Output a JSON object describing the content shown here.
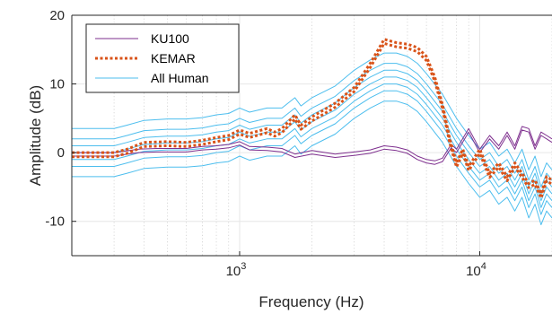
{
  "chart_data": {
    "type": "line",
    "title": "",
    "xlabel": "Frequency (Hz)",
    "ylabel": "Amplitude (dB)",
    "xscale": "log",
    "xlim": [
      200,
      20000
    ],
    "ylim": [
      -15,
      20
    ],
    "grid": "on",
    "legend": {
      "placement": "top-left"
    },
    "x_ticks": [
      {
        "value": 1000,
        "base": "10",
        "exp": "3"
      },
      {
        "value": 10000,
        "base": "10",
        "exp": "4"
      }
    ],
    "y_ticks": [
      {
        "value": 20,
        "label": "20"
      },
      {
        "value": 10,
        "label": "10"
      },
      {
        "value": 0,
        "label": "0"
      },
      {
        "value": -10,
        "label": "-10"
      }
    ],
    "series": [
      {
        "name": "KU100",
        "color": "#7e2f8e",
        "style": "solid",
        "copies": [
          0,
          -0.5
        ],
        "points": [
          [
            200,
            0
          ],
          [
            300,
            0
          ],
          [
            330,
            0.2
          ],
          [
            380,
            0.5
          ],
          [
            450,
            0.6
          ],
          [
            600,
            0.6
          ],
          [
            700,
            0.9
          ],
          [
            800,
            1.0
          ],
          [
            900,
            1.2
          ],
          [
            1000,
            1.6
          ],
          [
            1100,
            0.9
          ],
          [
            1300,
            0.8
          ],
          [
            1500,
            0.6
          ],
          [
            1700,
            -0.2
          ],
          [
            2000,
            0.3
          ],
          [
            2500,
            -0.2
          ],
          [
            3000,
            0.1
          ],
          [
            3500,
            0.4
          ],
          [
            4000,
            1.0
          ],
          [
            4500,
            0.8
          ],
          [
            5000,
            0.4
          ],
          [
            5500,
            -0.5
          ],
          [
            6000,
            -1.0
          ],
          [
            6500,
            -1.2
          ],
          [
            7000,
            -0.8
          ],
          [
            7600,
            1.2
          ],
          [
            8000,
            0.5
          ],
          [
            9000,
            3.5
          ],
          [
            10000,
            0.5
          ],
          [
            11000,
            2.5
          ],
          [
            12000,
            1.0
          ],
          [
            13000,
            3.0
          ],
          [
            14000,
            1.0
          ],
          [
            15000,
            3.8
          ],
          [
            16000,
            3.5
          ],
          [
            17000,
            1.0
          ],
          [
            18000,
            3.0
          ],
          [
            19000,
            2.5
          ],
          [
            20000,
            2.0
          ]
        ]
      },
      {
        "name": "KEMAR",
        "color": "#d95319",
        "style": "dotted",
        "copies": [
          0,
          -0.6
        ],
        "points": [
          [
            200,
            0
          ],
          [
            300,
            0
          ],
          [
            340,
            0.5
          ],
          [
            400,
            1.5
          ],
          [
            500,
            1.6
          ],
          [
            600,
            1.5
          ],
          [
            700,
            1.8
          ],
          [
            800,
            2.2
          ],
          [
            900,
            2.5
          ],
          [
            1000,
            3.3
          ],
          [
            1100,
            2.8
          ],
          [
            1300,
            3.5
          ],
          [
            1400,
            3.0
          ],
          [
            1500,
            3.5
          ],
          [
            1700,
            5.5
          ],
          [
            1800,
            4.0
          ],
          [
            2000,
            5.2
          ],
          [
            2500,
            7.2
          ],
          [
            3000,
            9.5
          ],
          [
            3500,
            13.0
          ],
          [
            4000,
            16.5
          ],
          [
            4500,
            16.0
          ],
          [
            5000,
            15.8
          ],
          [
            5500,
            15.3
          ],
          [
            6000,
            14.0
          ],
          [
            6500,
            11.0
          ],
          [
            7000,
            7.0
          ],
          [
            7500,
            2.0
          ],
          [
            8000,
            -1.5
          ],
          [
            8500,
            0.5
          ],
          [
            9000,
            -2.0
          ],
          [
            10000,
            0.5
          ],
          [
            11000,
            -3.0
          ],
          [
            12000,
            -1.5
          ],
          [
            13000,
            -3.5
          ],
          [
            14000,
            -1.5
          ],
          [
            15000,
            -3.0
          ],
          [
            16000,
            -4.5
          ],
          [
            17000,
            -4.0
          ],
          [
            18000,
            -6.0
          ],
          [
            19000,
            -3.5
          ],
          [
            20000,
            -4.0
          ]
        ]
      },
      {
        "name": "All Human",
        "color": "#4dbeee",
        "style": "solid",
        "copies": [
          -3.5,
          -2,
          -1,
          0,
          1,
          2,
          3.5
        ],
        "points": [
          [
            200,
            0
          ],
          [
            300,
            0
          ],
          [
            340,
            0.5
          ],
          [
            400,
            1.2
          ],
          [
            500,
            1.4
          ],
          [
            600,
            1.4
          ],
          [
            700,
            1.6
          ],
          [
            800,
            2.0
          ],
          [
            900,
            2.2
          ],
          [
            1000,
            3.0
          ],
          [
            1100,
            2.4
          ],
          [
            1300,
            3.0
          ],
          [
            1500,
            3.0
          ],
          [
            1700,
            4.5
          ],
          [
            1800,
            3.3
          ],
          [
            2000,
            4.5
          ],
          [
            2500,
            6.2
          ],
          [
            3000,
            8.5
          ],
          [
            3500,
            10.0
          ],
          [
            4000,
            11.0
          ],
          [
            4500,
            11.0
          ],
          [
            5000,
            10.5
          ],
          [
            5500,
            9.5
          ],
          [
            6000,
            8.0
          ],
          [
            7000,
            5.0
          ],
          [
            8000,
            1.5
          ],
          [
            9000,
            -1.0
          ],
          [
            10000,
            -3.0
          ],
          [
            11000,
            -2.0
          ],
          [
            12000,
            -4.0
          ],
          [
            13000,
            -3.0
          ],
          [
            14000,
            -5.0
          ],
          [
            15000,
            -3.0
          ],
          [
            16000,
            -6.0
          ],
          [
            17000,
            -4.0
          ],
          [
            18000,
            -7.0
          ],
          [
            19000,
            -5.0
          ],
          [
            20000,
            -6.0
          ]
        ]
      }
    ]
  }
}
